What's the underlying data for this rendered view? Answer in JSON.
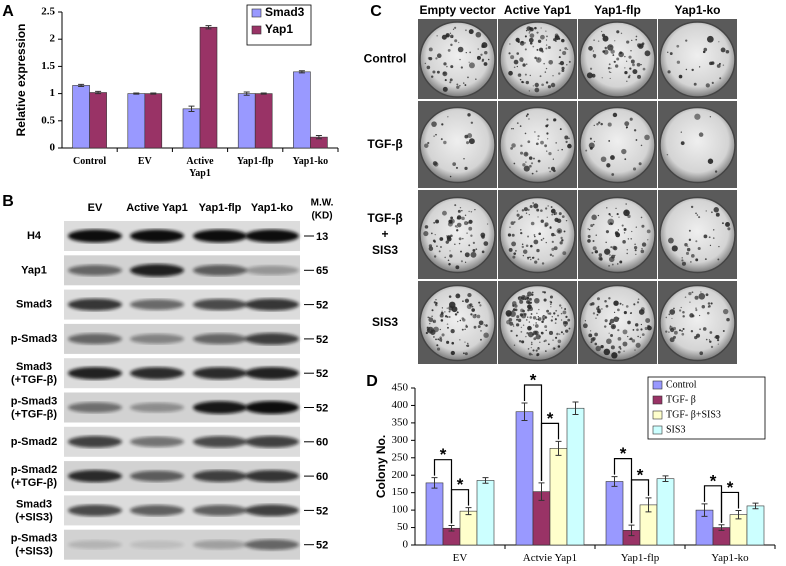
{
  "chart_data": [
    {
      "type": "bar",
      "panel": "A",
      "ylabel": "Relative expression",
      "categories": [
        [
          "Control"
        ],
        [
          "EV"
        ],
        [
          "Active",
          "Yap1"
        ],
        [
          "Yap1-flp"
        ],
        [
          "Yap1-ko"
        ]
      ],
      "series": [
        {
          "name": "Smad3",
          "color": "#9999ff",
          "values": [
            1.15,
            1.0,
            0.72,
            1.0,
            1.4
          ],
          "errors": [
            0.02,
            0.01,
            0.05,
            0.03,
            0.02
          ]
        },
        {
          "name": "Yap1",
          "color": "#993366",
          "values": [
            1.02,
            1.0,
            2.22,
            1.0,
            0.2
          ],
          "errors": [
            0.02,
            0.01,
            0.03,
            0.01,
            0.03
          ]
        }
      ],
      "ylim": [
        0,
        2.5
      ],
      "yticks": [
        0,
        0.5,
        1,
        1.5,
        2,
        2.5
      ]
    },
    {
      "type": "bar",
      "panel": "D",
      "ylabel": "Colony No.",
      "categories": [
        [
          "EV"
        ],
        [
          "Actvie Yap1"
        ],
        [
          "Yap1-flp"
        ],
        [
          "Yap1-ko"
        ]
      ],
      "series": [
        {
          "name": "Control",
          "color": "#9999ff",
          "values": [
            178,
            382,
            182,
            100
          ],
          "errors": [
            15,
            25,
            14,
            18
          ]
        },
        {
          "name": "TGF- β",
          "color": "#993366",
          "values": [
            48,
            153,
            42,
            50
          ],
          "errors": [
            8,
            25,
            15,
            8
          ]
        },
        {
          "name": "TGF- β+SIS3",
          "color": "#ffffcc",
          "values": [
            97,
            277,
            115,
            87
          ],
          "errors": [
            10,
            20,
            20,
            12
          ]
        },
        {
          "name": "SIS3",
          "color": "#ccffff",
          "values": [
            185,
            392,
            190,
            112
          ],
          "errors": [
            8,
            18,
            8,
            8
          ]
        }
      ],
      "annotations": [
        "*",
        "*",
        "*",
        "*",
        "*",
        "*",
        "*",
        "*"
      ],
      "ylim": [
        0,
        450
      ],
      "yticks": [
        0,
        50,
        100,
        150,
        200,
        250,
        300,
        350,
        400,
        450
      ]
    }
  ],
  "blot": {
    "panel": "B",
    "lanes": [
      "EV",
      "Active Yap1",
      "Yap1-flp",
      "Yap1-ko"
    ],
    "mw_header": [
      "M.W.",
      "(KD)"
    ],
    "rows": [
      {
        "label": [
          "H4"
        ],
        "mw": 13
      },
      {
        "label": [
          "Yap1"
        ],
        "mw": 65
      },
      {
        "label": [
          "Smad3"
        ],
        "mw": 52
      },
      {
        "label": [
          "p-Smad3"
        ],
        "mw": 52
      },
      {
        "label": [
          "Smad3",
          "(+TGF-β)"
        ],
        "mw": 52
      },
      {
        "label": [
          "p-Smad3",
          "(+TGF-β)"
        ],
        "mw": 52
      },
      {
        "label": [
          "p-Smad2"
        ],
        "mw": 60
      },
      {
        "label": [
          "p-Smad2",
          "(+TGF-β)"
        ],
        "mw": 60
      },
      {
        "label": [
          "Smad3",
          "(+SIS3)"
        ],
        "mw": 52
      },
      {
        "label": [
          "p-Smad3",
          "(+SIS3)"
        ],
        "mw": 52
      }
    ]
  },
  "colonies": {
    "panel": "C",
    "columns": [
      "Empty vector",
      "Active Yap1",
      "Yap1-flp",
      "Yap1-ko"
    ],
    "rows": [
      [
        "Control"
      ],
      [
        "TGF-β"
      ],
      [
        "TGF-β",
        "+",
        "SIS3"
      ],
      [
        "SIS3"
      ]
    ]
  }
}
